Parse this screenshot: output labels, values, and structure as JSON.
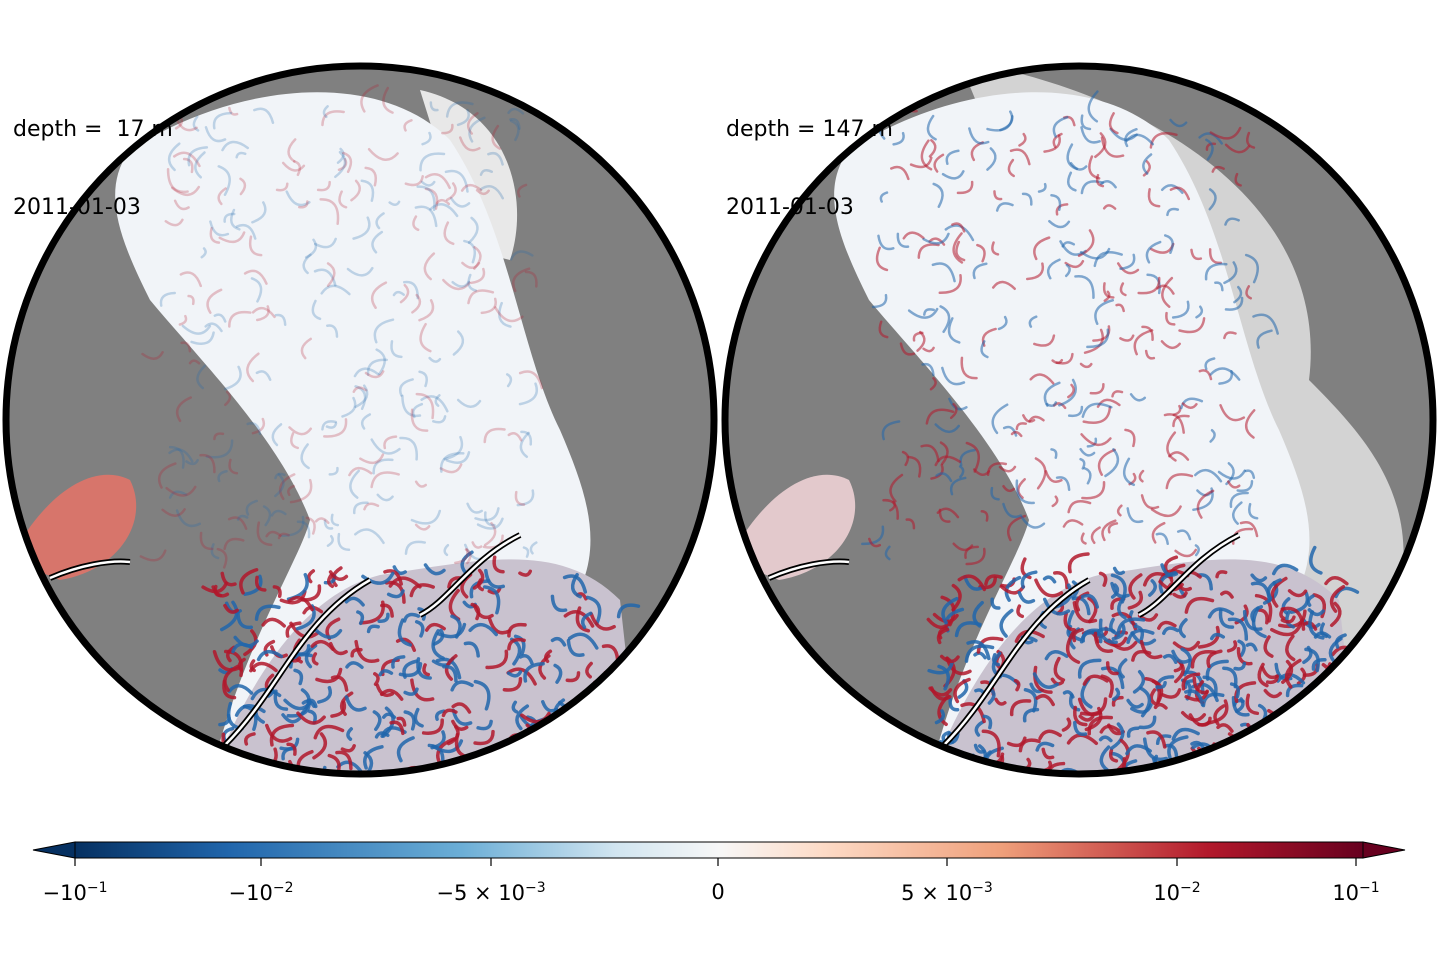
{
  "panels": [
    {
      "depth_label": "depth =  17 m",
      "date": "2011-01-03"
    },
    {
      "depth_label": "depth = 147 m",
      "date": "2011-01-03"
    }
  ],
  "colorbar": {
    "colormap": "RdBu_r",
    "extend": "both",
    "ticks": [
      {
        "base": "−10",
        "exp": "−1",
        "value": -0.1
      },
      {
        "base": "−10",
        "exp": "−2",
        "value": -0.01
      },
      {
        "base": "−5 × 10",
        "exp": "−3",
        "value": -0.005
      },
      {
        "base": "0",
        "exp": "",
        "value": 0
      },
      {
        "base": "5 × 10",
        "exp": "−3",
        "value": 0.005
      },
      {
        "base": "10",
        "exp": "−2",
        "value": 0.01
      },
      {
        "base": "10",
        "exp": "−1",
        "value": 0.1
      }
    ]
  },
  "colors": {
    "land": "#808080",
    "shelf": "#d3d3d3",
    "positive": "#b2182b",
    "negative": "#2166ac",
    "border": "#000000"
  }
}
